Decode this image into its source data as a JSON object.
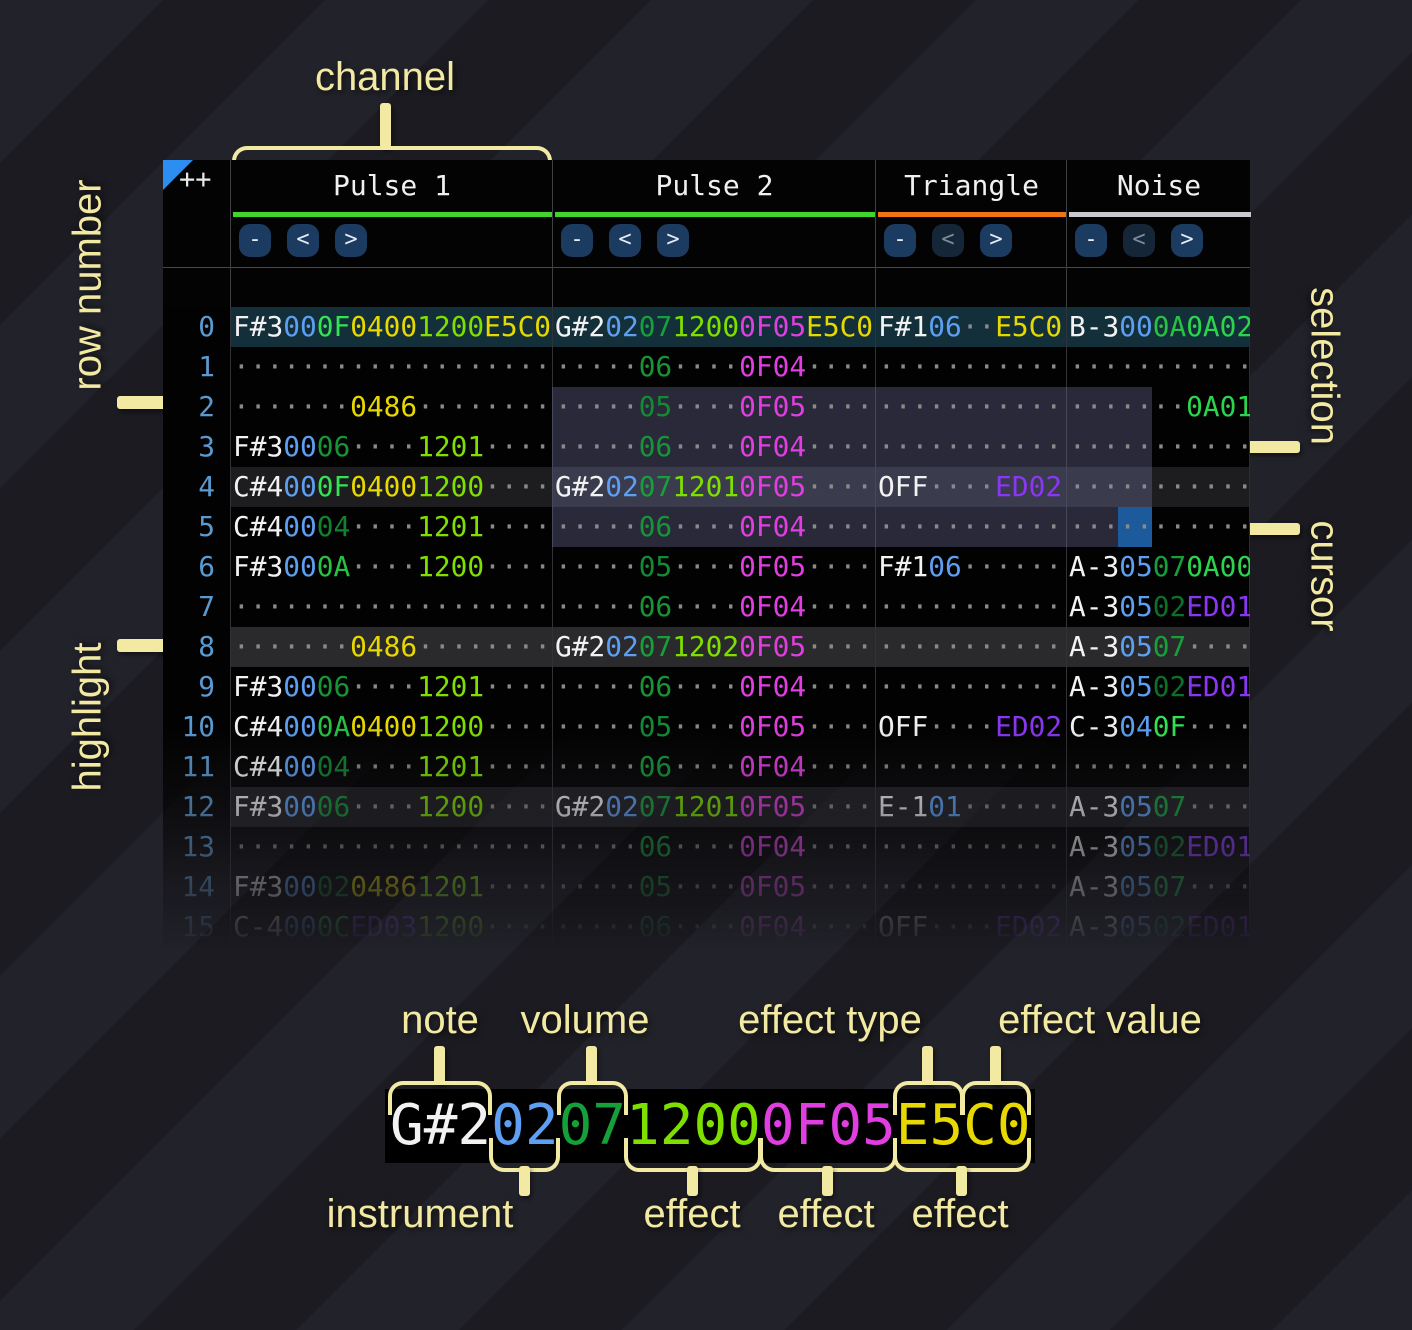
{
  "corner": {
    "plus_plus": "++"
  },
  "palette": {
    "note": "#f2f2f2",
    "inst": "#5d9ff2",
    "dot": "#8a8a8a",
    "volF": "#32e452",
    "volC": "#2bd148",
    "volA": "#27c243",
    "vol7": "#16a03a",
    "vol6": "#149637",
    "vol5": "#118c33",
    "vol4": "#0f8230",
    "vol2": "#0c7029",
    "fxY": "#e6d800",
    "fxL": "#7fe000",
    "fxM": "#e03ee0",
    "fxP": "#8a36f2",
    "fxG": "#2cd44e"
  },
  "ui_colors": {
    "annotation": "#f2e9a2",
    "selection": "rgba(116,116,168,0.34)",
    "cursor": "#1d5a9b",
    "playhead_row": "#13303a",
    "highlight_major": "#2a2a2c",
    "highlight_minor": "#1d1d20",
    "corner_triangle": "#2b8ef0",
    "button_bg": "#1c3b61",
    "button_text": "#e6edf5",
    "button_disabled_bg": "#152638",
    "button_disabled_text": "#7d8da0"
  },
  "channels": [
    {
      "name": "Pulse 1",
      "color": "#40d52a",
      "buttons": [
        {
          "label": "-",
          "enabled": true
        },
        {
          "label": "<",
          "enabled": true
        },
        {
          "label": ">",
          "enabled": true
        }
      ]
    },
    {
      "name": "Pulse 2",
      "color": "#40d52a",
      "buttons": [
        {
          "label": "-",
          "enabled": true
        },
        {
          "label": "<",
          "enabled": true
        },
        {
          "label": ">",
          "enabled": true
        }
      ]
    },
    {
      "name": "Triangle",
      "color": "#ef7514",
      "buttons": [
        {
          "label": "-",
          "enabled": true
        },
        {
          "label": "<",
          "enabled": false
        },
        {
          "label": ">",
          "enabled": true
        }
      ]
    },
    {
      "name": "Noise",
      "color": "#c9c9cd",
      "buttons": [
        {
          "label": "-",
          "enabled": true
        },
        {
          "label": "<",
          "enabled": false
        },
        {
          "label": ">",
          "enabled": true
        }
      ]
    }
  ],
  "rows": [
    {
      "n": "0",
      "cells": [
        [
          [
            "F#3",
            "note"
          ],
          [
            "00",
            "inst"
          ],
          [
            "0F",
            "volF"
          ],
          [
            "0400",
            "fxY"
          ],
          [
            "1200",
            "fxL"
          ],
          [
            "E5C0",
            "fxY"
          ]
        ],
        [
          [
            "G#2",
            "note"
          ],
          [
            "02",
            "inst"
          ],
          [
            "07",
            "vol7"
          ],
          [
            "1200",
            "fxL"
          ],
          [
            "0F05",
            "fxM"
          ],
          [
            "E5C0",
            "fxY"
          ]
        ],
        [
          [
            "F#1",
            "note"
          ],
          [
            "06",
            "inst"
          ],
          [
            "··",
            "dot"
          ],
          [
            "E5C0",
            "fxY"
          ]
        ],
        [
          [
            "B-3",
            "note"
          ],
          [
            "00",
            "inst"
          ],
          [
            "0A",
            "volA"
          ],
          [
            "0A02",
            "fxG"
          ]
        ]
      ]
    },
    {
      "n": "1",
      "cells": [
        [
          [
            "···················",
            "dot"
          ]
        ],
        [
          [
            "·····",
            "dot"
          ],
          [
            "06",
            "vol6"
          ],
          [
            "····",
            "dot"
          ],
          [
            "0F04",
            "fxM"
          ],
          [
            "····",
            "dot"
          ]
        ],
        [
          [
            "···········",
            "dot"
          ]
        ],
        [
          [
            "···········",
            "dot"
          ]
        ]
      ]
    },
    {
      "n": "2",
      "cells": [
        [
          [
            "·······",
            "dot"
          ],
          [
            "0486",
            "fxY"
          ],
          [
            "········",
            "dot"
          ]
        ],
        [
          [
            "·····",
            "dot"
          ],
          [
            "05",
            "vol5"
          ],
          [
            "····",
            "dot"
          ],
          [
            "0F05",
            "fxM"
          ],
          [
            "····",
            "dot"
          ]
        ],
        [
          [
            "···········",
            "dot"
          ]
        ],
        [
          [
            "·······",
            "dot"
          ],
          [
            "0A01",
            "fxG"
          ]
        ]
      ]
    },
    {
      "n": "3",
      "cells": [
        [
          [
            "F#3",
            "note"
          ],
          [
            "00",
            "inst"
          ],
          [
            "06",
            "vol6"
          ],
          [
            "····",
            "dot"
          ],
          [
            "1201",
            "fxL"
          ],
          [
            "····",
            "dot"
          ]
        ],
        [
          [
            "·····",
            "dot"
          ],
          [
            "06",
            "vol6"
          ],
          [
            "····",
            "dot"
          ],
          [
            "0F04",
            "fxM"
          ],
          [
            "····",
            "dot"
          ]
        ],
        [
          [
            "···········",
            "dot"
          ]
        ],
        [
          [
            "···········",
            "dot"
          ]
        ]
      ]
    },
    {
      "n": "4",
      "cells": [
        [
          [
            "C#4",
            "note"
          ],
          [
            "00",
            "inst"
          ],
          [
            "0F",
            "volF"
          ],
          [
            "0400",
            "fxY"
          ],
          [
            "1200",
            "fxL"
          ],
          [
            "····",
            "dot"
          ]
        ],
        [
          [
            "G#2",
            "note"
          ],
          [
            "02",
            "inst"
          ],
          [
            "07",
            "vol7"
          ],
          [
            "1201",
            "fxL"
          ],
          [
            "0F05",
            "fxM"
          ],
          [
            "····",
            "dot"
          ]
        ],
        [
          [
            "OFF",
            "note"
          ],
          [
            "····",
            "dot"
          ],
          [
            "ED02",
            "fxP"
          ]
        ],
        [
          [
            "···········",
            "dot"
          ]
        ]
      ]
    },
    {
      "n": "5",
      "cells": [
        [
          [
            "C#4",
            "note"
          ],
          [
            "00",
            "inst"
          ],
          [
            "04",
            "vol4"
          ],
          [
            "····",
            "dot"
          ],
          [
            "1201",
            "fxL"
          ],
          [
            "····",
            "dot"
          ]
        ],
        [
          [
            "·····",
            "dot"
          ],
          [
            "06",
            "vol6"
          ],
          [
            "····",
            "dot"
          ],
          [
            "0F04",
            "fxM"
          ],
          [
            "····",
            "dot"
          ]
        ],
        [
          [
            "···········",
            "dot"
          ]
        ],
        [
          [
            "···········",
            "dot"
          ]
        ]
      ]
    },
    {
      "n": "6",
      "cells": [
        [
          [
            "F#3",
            "note"
          ],
          [
            "00",
            "inst"
          ],
          [
            "0A",
            "volA"
          ],
          [
            "····",
            "dot"
          ],
          [
            "1200",
            "fxL"
          ],
          [
            "····",
            "dot"
          ]
        ],
        [
          [
            "·····",
            "dot"
          ],
          [
            "05",
            "vol5"
          ],
          [
            "····",
            "dot"
          ],
          [
            "0F05",
            "fxM"
          ],
          [
            "····",
            "dot"
          ]
        ],
        [
          [
            "F#1",
            "note"
          ],
          [
            "06",
            "inst"
          ],
          [
            "······",
            "dot"
          ]
        ],
        [
          [
            "A-3",
            "note"
          ],
          [
            "05",
            "inst"
          ],
          [
            "07",
            "vol7"
          ],
          [
            "0A00",
            "fxG"
          ]
        ]
      ]
    },
    {
      "n": "7",
      "cells": [
        [
          [
            "···················",
            "dot"
          ]
        ],
        [
          [
            "·····",
            "dot"
          ],
          [
            "06",
            "vol6"
          ],
          [
            "····",
            "dot"
          ],
          [
            "0F04",
            "fxM"
          ],
          [
            "····",
            "dot"
          ]
        ],
        [
          [
            "···········",
            "dot"
          ]
        ],
        [
          [
            "A-3",
            "note"
          ],
          [
            "05",
            "inst"
          ],
          [
            "02",
            "vol2"
          ],
          [
            "ED01",
            "fxP"
          ]
        ]
      ]
    },
    {
      "n": "8",
      "cells": [
        [
          [
            "·······",
            "dot"
          ],
          [
            "0486",
            "fxY"
          ],
          [
            "········",
            "dot"
          ]
        ],
        [
          [
            "G#2",
            "note"
          ],
          [
            "02",
            "inst"
          ],
          [
            "07",
            "vol7"
          ],
          [
            "1202",
            "fxL"
          ],
          [
            "0F05",
            "fxM"
          ],
          [
            "····",
            "dot"
          ]
        ],
        [
          [
            "···········",
            "dot"
          ]
        ],
        [
          [
            "A-3",
            "note"
          ],
          [
            "05",
            "inst"
          ],
          [
            "07",
            "vol7"
          ],
          [
            "····",
            "dot"
          ]
        ]
      ]
    },
    {
      "n": "9",
      "cells": [
        [
          [
            "F#3",
            "note"
          ],
          [
            "00",
            "inst"
          ],
          [
            "06",
            "vol6"
          ],
          [
            "····",
            "dot"
          ],
          [
            "1201",
            "fxL"
          ],
          [
            "····",
            "dot"
          ]
        ],
        [
          [
            "·····",
            "dot"
          ],
          [
            "06",
            "vol6"
          ],
          [
            "····",
            "dot"
          ],
          [
            "0F04",
            "fxM"
          ],
          [
            "····",
            "dot"
          ]
        ],
        [
          [
            "···········",
            "dot"
          ]
        ],
        [
          [
            "A-3",
            "note"
          ],
          [
            "05",
            "inst"
          ],
          [
            "02",
            "vol2"
          ],
          [
            "ED01",
            "fxP"
          ]
        ]
      ]
    },
    {
      "n": "10",
      "cells": [
        [
          [
            "C#4",
            "note"
          ],
          [
            "00",
            "inst"
          ],
          [
            "0A",
            "volA"
          ],
          [
            "0400",
            "fxY"
          ],
          [
            "1200",
            "fxL"
          ],
          [
            "····",
            "dot"
          ]
        ],
        [
          [
            "·····",
            "dot"
          ],
          [
            "05",
            "vol5"
          ],
          [
            "····",
            "dot"
          ],
          [
            "0F05",
            "fxM"
          ],
          [
            "····",
            "dot"
          ]
        ],
        [
          [
            "OFF",
            "note"
          ],
          [
            "····",
            "dot"
          ],
          [
            "ED02",
            "fxP"
          ]
        ],
        [
          [
            "C-3",
            "note"
          ],
          [
            "04",
            "inst"
          ],
          [
            "0F",
            "volF"
          ],
          [
            "····",
            "dot"
          ]
        ]
      ]
    },
    {
      "n": "11",
      "cells": [
        [
          [
            "C#4",
            "note"
          ],
          [
            "00",
            "inst"
          ],
          [
            "04",
            "vol4"
          ],
          [
            "····",
            "dot"
          ],
          [
            "1201",
            "fxL"
          ],
          [
            "····",
            "dot"
          ]
        ],
        [
          [
            "·····",
            "dot"
          ],
          [
            "06",
            "vol6"
          ],
          [
            "····",
            "dot"
          ],
          [
            "0F04",
            "fxM"
          ],
          [
            "····",
            "dot"
          ]
        ],
        [
          [
            "···········",
            "dot"
          ]
        ],
        [
          [
            "···········",
            "dot"
          ]
        ]
      ]
    },
    {
      "n": "12",
      "cells": [
        [
          [
            "F#3",
            "note"
          ],
          [
            "00",
            "inst"
          ],
          [
            "06",
            "vol6"
          ],
          [
            "····",
            "dot"
          ],
          [
            "1200",
            "fxL"
          ],
          [
            "····",
            "dot"
          ]
        ],
        [
          [
            "G#2",
            "note"
          ],
          [
            "02",
            "inst"
          ],
          [
            "07",
            "vol7"
          ],
          [
            "1201",
            "fxL"
          ],
          [
            "0F05",
            "fxM"
          ],
          [
            "····",
            "dot"
          ]
        ],
        [
          [
            "E-1",
            "note"
          ],
          [
            "01",
            "inst"
          ],
          [
            "······",
            "dot"
          ]
        ],
        [
          [
            "A-3",
            "note"
          ],
          [
            "05",
            "inst"
          ],
          [
            "07",
            "vol7"
          ],
          [
            "····",
            "dot"
          ]
        ]
      ]
    },
    {
      "n": "13",
      "cells": [
        [
          [
            "···················",
            "dot"
          ]
        ],
        [
          [
            "·····",
            "dot"
          ],
          [
            "06",
            "vol6"
          ],
          [
            "····",
            "dot"
          ],
          [
            "0F04",
            "fxM"
          ],
          [
            "····",
            "dot"
          ]
        ],
        [
          [
            "···········",
            "dot"
          ]
        ],
        [
          [
            "A-3",
            "note"
          ],
          [
            "05",
            "inst"
          ],
          [
            "02",
            "vol2"
          ],
          [
            "ED01",
            "fxP"
          ]
        ]
      ]
    },
    {
      "n": "14",
      "cells": [
        [
          [
            "F#3",
            "note"
          ],
          [
            "00",
            "inst"
          ],
          [
            "02",
            "vol2"
          ],
          [
            "0486",
            "fxY"
          ],
          [
            "1201",
            "fxL"
          ],
          [
            "····",
            "dot"
          ]
        ],
        [
          [
            "·····",
            "dot"
          ],
          [
            "05",
            "vol5"
          ],
          [
            "····",
            "dot"
          ],
          [
            "0F05",
            "fxM"
          ],
          [
            "····",
            "dot"
          ]
        ],
        [
          [
            "···········",
            "dot"
          ]
        ],
        [
          [
            "A-3",
            "note"
          ],
          [
            "05",
            "inst"
          ],
          [
            "07",
            "vol7"
          ],
          [
            "····",
            "dot"
          ]
        ]
      ]
    },
    {
      "n": "15",
      "cells": [
        [
          [
            "C-4",
            "note"
          ],
          [
            "00",
            "inst"
          ],
          [
            "0C",
            "volC"
          ],
          [
            "ED03",
            "fxP"
          ],
          [
            "1200",
            "fxL"
          ],
          [
            "····",
            "dot"
          ]
        ],
        [
          [
            "·····",
            "dot"
          ],
          [
            "06",
            "vol6"
          ],
          [
            "····",
            "dot"
          ],
          [
            "0F04",
            "fxM"
          ],
          [
            "····",
            "dot"
          ]
        ],
        [
          [
            "OFF",
            "note"
          ],
          [
            "····",
            "dot"
          ],
          [
            "ED02",
            "fxP"
          ]
        ],
        [
          [
            "A-3",
            "note"
          ],
          [
            "05",
            "inst"
          ],
          [
            "02",
            "vol2"
          ],
          [
            "ED01",
            "fxP"
          ]
        ]
      ]
    }
  ],
  "annotations": {
    "channel": "channel",
    "row_number": "row number",
    "highlight": "highlight",
    "selection": "selection",
    "cursor": "cursor",
    "note": "note",
    "volume": "volume",
    "effect_type": "effect type",
    "effect_value": "effect value",
    "instrument": "instrument",
    "effect": "effect"
  },
  "example": {
    "segments": [
      [
        "G#2",
        "note"
      ],
      [
        "02",
        "inst"
      ],
      [
        "07",
        "vol7"
      ],
      [
        "1200",
        "fxL"
      ],
      [
        "0F05",
        "fxM"
      ],
      [
        "E5C0",
        "fxY"
      ]
    ]
  }
}
